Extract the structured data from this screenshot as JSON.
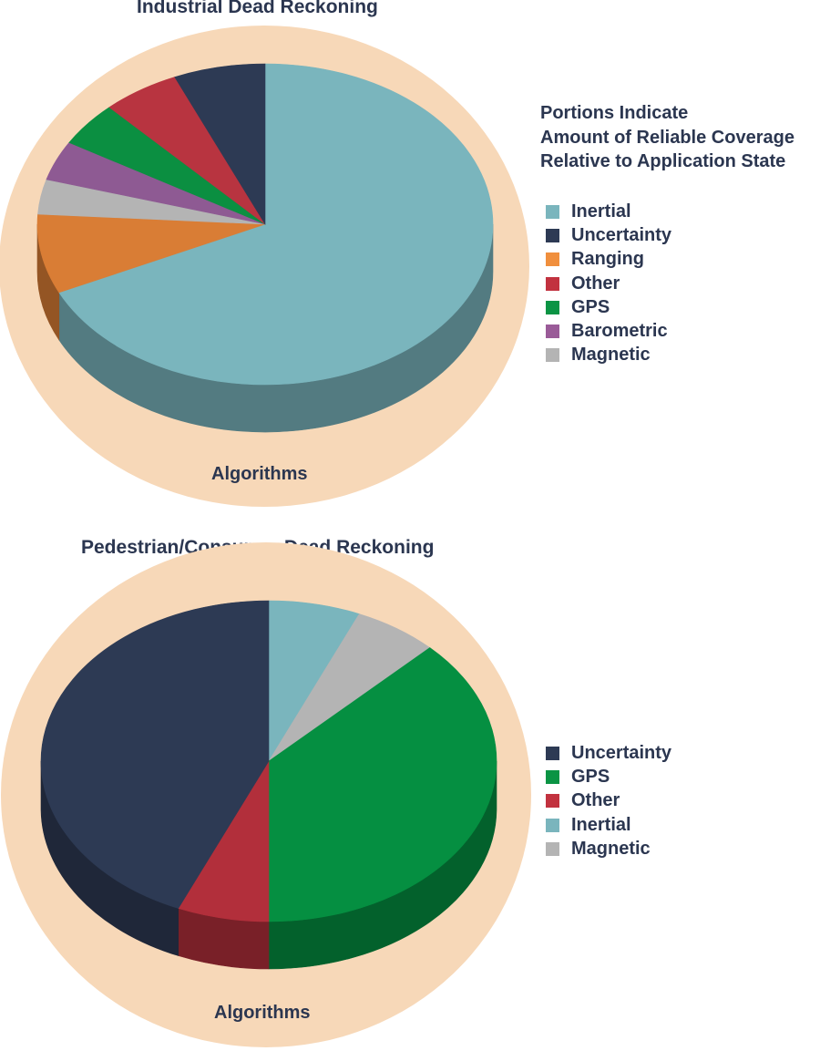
{
  "chart_data": [
    {
      "type": "pie",
      "title": "Industrial Dead Reckoning",
      "bottom_label": "Algorithms",
      "note": [
        "Portions Indicate",
        "Amount of Reliable Coverage",
        "Relative to Application State"
      ],
      "legend_placement": "right",
      "legend": [
        "Inertial",
        "Uncertainty",
        "Ranging",
        "Other",
        "GPS",
        "Barometric",
        "Magnetic"
      ],
      "slices": [
        {
          "label": "Inertial",
          "value": 68,
          "color": "#7ab5bd"
        },
        {
          "label": "Ranging",
          "value": 8,
          "color": "#d97d35"
        },
        {
          "label": "Magnetic",
          "value": 3.5,
          "color": "#b4b4b4"
        },
        {
          "label": "Barometric",
          "value": 4,
          "color": "#8e5a93"
        },
        {
          "label": "GPS",
          "value": 4.5,
          "color": "#0b8f41"
        },
        {
          "label": "Other",
          "value": 5.5,
          "color": "#b83440"
        },
        {
          "label": "Uncertainty",
          "value": 6.5,
          "color": "#2d3a54"
        }
      ]
    },
    {
      "type": "pie",
      "title": "Pedestrian/Consumer Dead Reckoning",
      "bottom_label": "Algorithms",
      "legend_placement": "right",
      "legend": [
        "Uncertainty",
        "GPS",
        "Other",
        "Inertial",
        "Magnetic"
      ],
      "slices": [
        {
          "label": "Inertial",
          "value": 6.5,
          "color": "#7ab5bd"
        },
        {
          "label": "Magnetic",
          "value": 6,
          "color": "#b4b4b4"
        },
        {
          "label": "GPS",
          "value": 37.5,
          "color": "#058f41"
        },
        {
          "label": "Other",
          "value": 6.5,
          "color": "#b22f3b"
        },
        {
          "label": "Uncertainty",
          "value": 43.5,
          "color": "#2d3a54"
        }
      ]
    }
  ],
  "colors": {
    "ring": "#f7d8b8",
    "text": "#2b3650",
    "Inertial": "#7ab5bd",
    "Uncertainty": "#2d3a54",
    "Ranging": "#f08f3d",
    "Other": "#c2323f",
    "GPS": "#0b9444",
    "Barometric": "#9a5b98",
    "Magnetic": "#b4b4b4"
  }
}
